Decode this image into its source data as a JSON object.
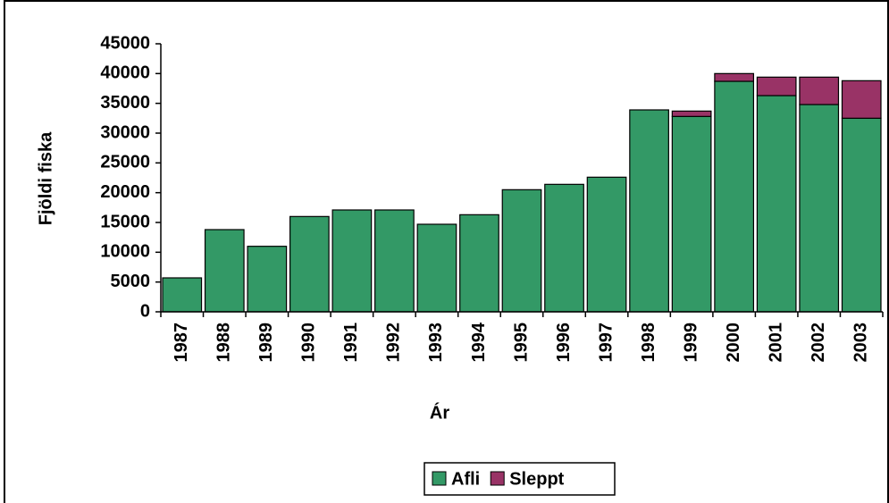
{
  "chart_data": {
    "type": "stacked_bar",
    "x_label": "Ár",
    "y_label": "Fjöldi fiska",
    "categories": [
      "1987",
      "1988",
      "1989",
      "1990",
      "1991",
      "1992",
      "1993",
      "1994",
      "1995",
      "1996",
      "1997",
      "1998",
      "1999",
      "2000",
      "2001",
      "2002",
      "2003"
    ],
    "series": [
      {
        "name": "Afli",
        "color": "#339966",
        "values": [
          5700,
          13800,
          11000,
          16000,
          17100,
          17100,
          14700,
          16300,
          20500,
          21400,
          22600,
          33900,
          32800,
          38700,
          36300,
          34800,
          32500
        ]
      },
      {
        "name": "Sleppt",
        "color": "#993366",
        "values": [
          null,
          null,
          null,
          null,
          null,
          null,
          null,
          null,
          null,
          null,
          null,
          null,
          900,
          1300,
          3100,
          4600,
          6300
        ]
      }
    ],
    "ylim": [
      0,
      45000
    ],
    "yticks": [
      0,
      5000,
      10000,
      15000,
      20000,
      25000,
      30000,
      35000,
      40000,
      45000
    ],
    "legend": "bottom"
  }
}
